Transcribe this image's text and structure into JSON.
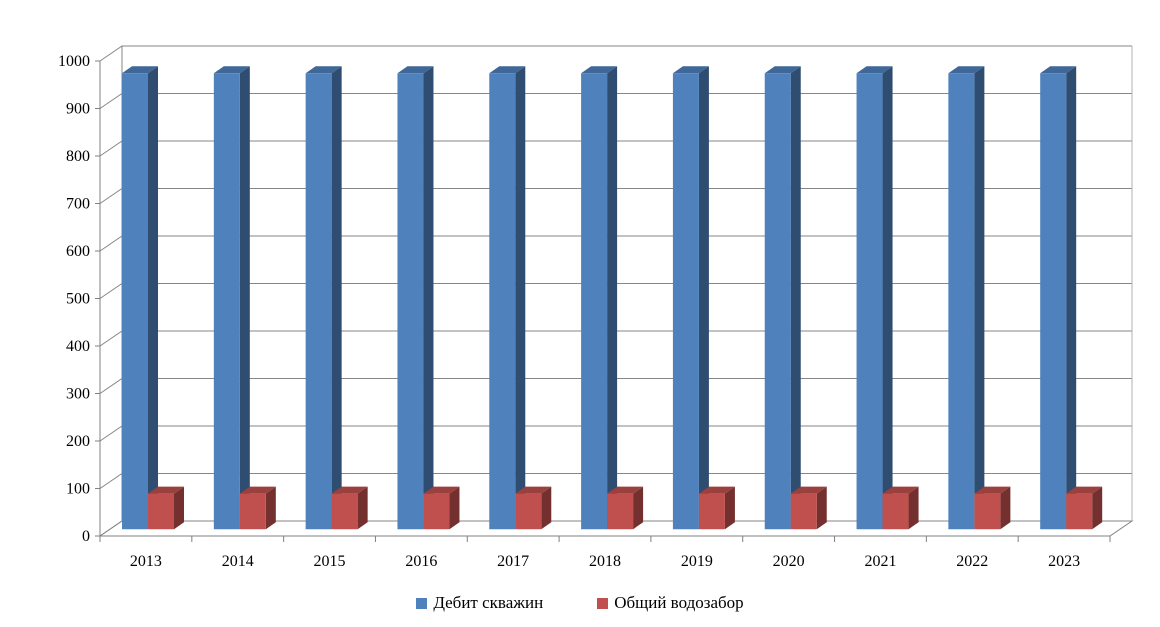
{
  "chart_data": {
    "type": "bar",
    "title": "",
    "xlabel": "",
    "ylabel": "",
    "ylim": [
      0,
      1000
    ],
    "y_ticks": [
      "0",
      "100",
      "200",
      "300",
      "400",
      "500",
      "600",
      "700",
      "800",
      "900",
      "1000"
    ],
    "categories": [
      "2013",
      "2014",
      "2015",
      "2016",
      "2017",
      "2018",
      "2019",
      "2020",
      "2021",
      "2022",
      "2023"
    ],
    "series": [
      {
        "name": "Дебит скважин",
        "color": "#4f81bd",
        "values": [
          960,
          960,
          960,
          960,
          960,
          960,
          960,
          960,
          960,
          960,
          960
        ]
      },
      {
        "name": "Общий водозабор",
        "color": "#c0504d",
        "values": [
          75,
          75,
          75,
          75,
          75,
          75,
          75,
          75,
          75,
          75,
          75
        ]
      }
    ],
    "grid": true,
    "legend_position": "bottom",
    "style": "3d-clustered-column"
  }
}
